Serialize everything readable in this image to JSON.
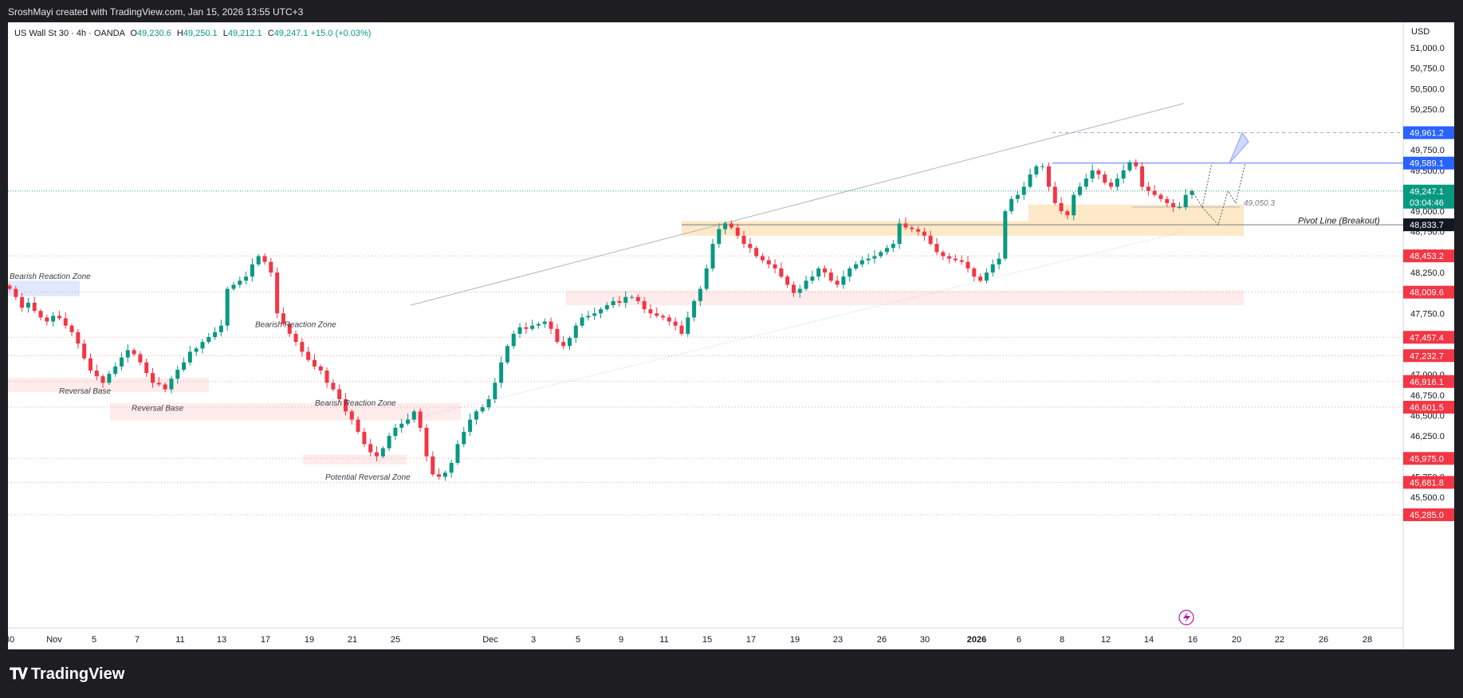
{
  "header": {
    "attribution": "SroshMayi created with TradingView.com, Jan 15, 2026 13:55 UTC+3"
  },
  "legend": {
    "symbol": "US Wall St 30 · 4h · OANDA",
    "o_label": "O",
    "o": "49,230.6",
    "h_label": "H",
    "h": "49,250.1",
    "l_label": "L",
    "l": "49,212.1",
    "c_label": "C",
    "c": "49,247.1",
    "change": "+15.0 (+0.03%)"
  },
  "axis": {
    "currency": "USD"
  },
  "countdown": "03:04:46",
  "colors": {
    "up": "#089981",
    "down": "#f23645",
    "price_blue": "#2962ff",
    "pivot_black": "#131722",
    "zone_orange": "#fde9c7",
    "zone_red": "#fde2e2",
    "zone_blue": "#dfe8fd"
  },
  "footer": {
    "brand": "TradingView"
  },
  "chart_data": {
    "type": "candlestick",
    "title": "US Wall St 30 · 4h · OANDA",
    "ylim": [
      45200,
      51200
    ],
    "y_ticks": [
      "51,000.0",
      "50,750.0",
      "50,500.0",
      "50,250.0",
      "50,000.0",
      "49,750.0",
      "49,500.0",
      "49,250.0",
      "49,000.0",
      "48,750.0",
      "48,500.0",
      "48,250.0",
      "48,000.0",
      "47,750.0",
      "47,500.0",
      "47,250.0",
      "47,000.0",
      "46,750.0",
      "46,500.0",
      "46,250.0",
      "46,000.0",
      "45,750.0",
      "45,500.0"
    ],
    "x_ticks": [
      "30",
      "Nov",
      "5",
      "7",
      "11",
      "13",
      "17",
      "19",
      "21",
      "25",
      "Dec",
      "3",
      "5",
      "9",
      "11",
      "15",
      "17",
      "19",
      "23",
      "26",
      "30",
      "2026",
      "6",
      "8",
      "12",
      "14",
      "16",
      "20",
      "22",
      "26",
      "28"
    ],
    "price_badges": [
      {
        "value": 49961.2,
        "label": "49,961.2",
        "kind": "blue"
      },
      {
        "value": 49589.1,
        "label": "49,589.1",
        "kind": "blue"
      },
      {
        "value": 49247.1,
        "label": "49,247.1",
        "kind": "green"
      },
      {
        "value": 48833.7,
        "label": "48,833.7",
        "kind": "black"
      },
      {
        "value": 48453.2,
        "label": "48,453.2",
        "kind": "red"
      },
      {
        "value": 48009.6,
        "label": "48,009.6",
        "kind": "red"
      },
      {
        "value": 47457.4,
        "label": "47,457.4",
        "kind": "red"
      },
      {
        "value": 47232.7,
        "label": "47,232.7",
        "kind": "red"
      },
      {
        "value": 46916.1,
        "label": "46,916.1",
        "kind": "red"
      },
      {
        "value": 46601.5,
        "label": "46,601.5",
        "kind": "red"
      },
      {
        "value": 45975.0,
        "label": "45,975.0",
        "kind": "red"
      },
      {
        "value": 45681.8,
        "label": "45,681.8",
        "kind": "red"
      },
      {
        "value": 45285.0,
        "label": "45,285.0",
        "kind": "red"
      }
    ],
    "annotations": [
      {
        "text": "Bearish Reaction Zone"
      },
      {
        "text": "Bearish Reaction Zone"
      },
      {
        "text": "Bearish Reaction Zone"
      },
      {
        "text": "Reversal Base"
      },
      {
        "text": "Reversal Base"
      },
      {
        "text": "Potential Reversal Zone"
      },
      {
        "text": "49,050.3"
      },
      {
        "text": "Pivot Line  (Breakout)"
      }
    ],
    "close_series": [
      48050,
      47950,
      47820,
      47880,
      47780,
      47700,
      47650,
      47720,
      47690,
      47600,
      47520,
      47380,
      47200,
      47050,
      46980,
      46900,
      47010,
      47100,
      47210,
      47300,
      47250,
      47150,
      47020,
      46900,
      46880,
      46820,
      46950,
      47060,
      47150,
      47280,
      47320,
      47400,
      47460,
      47520,
      47600,
      48050,
      48100,
      48150,
      48200,
      48350,
      48450,
      48380,
      48250,
      47750,
      47620,
      47500,
      47400,
      47280,
      47180,
      47100,
      47050,
      46900,
      46820,
      46700,
      46550,
      46450,
      46300,
      46150,
      46050,
      46000,
      46100,
      46250,
      46350,
      46400,
      46450,
      46550,
      46350,
      46000,
      45780,
      45750,
      45800,
      45920,
      46150,
      46300,
      46450,
      46550,
      46600,
      46700,
      46900,
      47150,
      47350,
      47500,
      47580,
      47560,
      47600,
      47620,
      47650,
      47560,
      47400,
      47350,
      47450,
      47600,
      47700,
      47720,
      47750,
      47800,
      47850,
      47900,
      47880,
      47950,
      47950,
      47900,
      47800,
      47750,
      47720,
      47700,
      47650,
      47600,
      47500,
      47700,
      47900,
      48050,
      48300,
      48600,
      48780,
      48850,
      48800,
      48700,
      48600,
      48550,
      48450,
      48400,
      48350,
      48300,
      48200,
      48100,
      48000,
      48050,
      48150,
      48200,
      48300,
      48250,
      48150,
      48100,
      48200,
      48300,
      48350,
      48400,
      48420,
      48450,
      48500,
      48550,
      48600,
      48850,
      48800,
      48780,
      48750,
      48700,
      48600,
      48500,
      48450,
      48420,
      48400,
      48380,
      48300,
      48200,
      48150,
      48250,
      48350,
      48420,
      49000,
      49150,
      49200,
      49300,
      49450,
      49550,
      49550,
      49300,
      49100,
      49000,
      48950,
      49200,
      49300,
      49400,
      49500,
      49450,
      49350,
      49300,
      49400,
      49500,
      49600,
      49550,
      49300,
      49250,
      49200,
      49150,
      49100,
      49050,
      49050,
      49200,
      49247
    ],
    "levels": {
      "resistance_top": 49961.2,
      "resistance": 49589.1,
      "last": 49247.1,
      "pivot": 48833.7
    }
  }
}
